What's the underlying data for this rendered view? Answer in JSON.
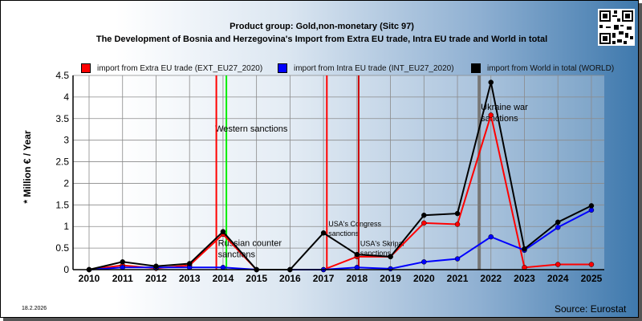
{
  "header": {
    "title_line1": "Product group: Gold,non-monetary (Sitc 97)",
    "title_line2": "The Development of Bosnia and Herzegovina's Import from Extra EU trade, Intra EU trade and World in total"
  },
  "footer": {
    "date": "18.2.2026",
    "source": "Source: Eurostat"
  },
  "chart_data": {
    "type": "line",
    "title": "The Development of Bosnia and Herzegovina's Import from Extra EU trade, Intra EU trade and World in total",
    "ylabel": "* Million € / Year",
    "xlabel": "",
    "ylim": [
      0,
      4.5
    ],
    "yticks": [
      "0",
      "0.5",
      "1",
      "1.5",
      "2",
      "2.5",
      "3",
      "3.5",
      "4",
      "4.5"
    ],
    "categories": [
      "2010",
      "2011",
      "2012",
      "2013",
      "2014",
      "2015",
      "2016",
      "2017",
      "2018",
      "2019",
      "2020",
      "2021",
      "2022",
      "2023",
      "2024",
      "2025"
    ],
    "grid": true,
    "legend_position": "top",
    "series": [
      {
        "name": "import from Extra EU trade (EXT_EU27_2020)",
        "color": "#ff0000",
        "values": [
          0,
          0.1,
          0.03,
          0.1,
          0.82,
          0,
          0,
          0,
          0.3,
          0.3,
          1.08,
          1.05,
          3.58,
          0.05,
          0.12,
          0.12
        ]
      },
      {
        "name": "import from Intra EU trade (INT_EU27_2020)",
        "color": "#0000ff",
        "values": [
          0,
          0.05,
          0.05,
          0.05,
          0.05,
          0,
          0,
          0,
          0.05,
          0.02,
          0.18,
          0.25,
          0.76,
          0.45,
          0.98,
          1.38
        ]
      },
      {
        "name": "import from World in total (WORLD)",
        "color": "#000000",
        "values": [
          0,
          0.18,
          0.08,
          0.14,
          0.88,
          0,
          0,
          0.85,
          0.35,
          0.3,
          1.26,
          1.3,
          4.34,
          0.48,
          1.1,
          1.48
        ]
      }
    ],
    "events": [
      {
        "label": "Western sanctions",
        "x": 2014.1,
        "color": "#00ee00",
        "label_y": 3.2
      },
      {
        "label": "Russian counter sanctions",
        "x": 2013.8,
        "color": "#ff0000",
        "label_y": 0.55
      },
      {
        "label": "USA's Congress sanctions",
        "x": 2017.1,
        "color": "#ff0000",
        "label_y": 1.0
      },
      {
        "label": "USA's Skripal sanctions",
        "x": 2018.05,
        "color": "#cc0000",
        "label_y": 0.55
      },
      {
        "label": "Ukraine war sanctions",
        "x": 2021.65,
        "color": "#777777",
        "label_y": 3.7
      }
    ]
  }
}
